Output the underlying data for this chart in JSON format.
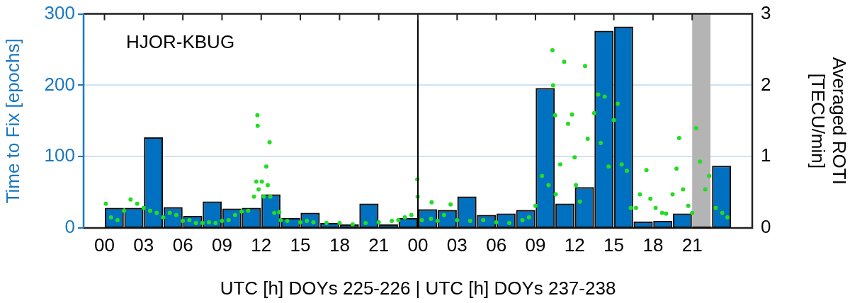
{
  "chart_data": {
    "type": "bar",
    "xlabel": "UTC [h] DOYs 225-226 | UTC [h] DOYs 237-238",
    "ylabel": "Time to Fix [epochs]",
    "y2label": "Averaged ROTI [TECU/min]",
    "annotations": [
      "HJOR-KBUG"
    ],
    "xlim": [
      0,
      48
    ],
    "xticks": [
      {
        "value": 0,
        "label": "00"
      },
      {
        "value": 3,
        "label": "03"
      },
      {
        "value": 6,
        "label": "06"
      },
      {
        "value": 9,
        "label": "09"
      },
      {
        "value": 12,
        "label": "12"
      },
      {
        "value": 15,
        "label": "15"
      },
      {
        "value": 18,
        "label": "18"
      },
      {
        "value": 21,
        "label": "21"
      },
      {
        "value": 24,
        "label": "00"
      },
      {
        "value": 27,
        "label": "03"
      },
      {
        "value": 30,
        "label": "06"
      },
      {
        "value": 33,
        "label": "09"
      },
      {
        "value": 36,
        "label": "12"
      },
      {
        "value": 39,
        "label": "15"
      },
      {
        "value": 42,
        "label": "18"
      },
      {
        "value": 45,
        "label": "21"
      }
    ],
    "ylim": [
      0,
      300
    ],
    "yticks": [
      0,
      100,
      200,
      300
    ],
    "y2lim": [
      0,
      3
    ],
    "y2ticks": [
      0,
      1,
      2,
      3
    ],
    "grid": "y",
    "legend": false,
    "ref_lines": [
      {
        "axis": "x",
        "value": 24,
        "color": "#000000"
      }
    ],
    "bands": [
      {
        "axis": "x",
        "from": 45,
        "to": 46.4,
        "color": "#b4b4b4"
      }
    ],
    "series": [
      {
        "type": "bar",
        "color": "#0070c0",
        "x": [
          0.75,
          2.25,
          3.75,
          5.25,
          6.75,
          8.25,
          9.75,
          11.25,
          12.75,
          14.25,
          15.75,
          17.25,
          18.75,
          20.25,
          21.75,
          23.25,
          24.75,
          26.25,
          27.75,
          29.25,
          30.75,
          32.25,
          33.75,
          35.25,
          36.75,
          38.25,
          39.75,
          41.25,
          42.75,
          44.25,
          45.75,
          47.25
        ],
        "values": [
          26,
          26,
          125,
          27,
          15,
          35,
          25,
          26,
          45,
          12,
          19,
          5,
          3,
          32,
          3,
          12,
          24,
          23,
          42,
          16,
          18,
          23,
          194,
          32,
          55,
          274,
          280,
          7,
          8,
          18,
          null,
          85
        ]
      },
      {
        "type": "scatter",
        "axis": "y2",
        "color": "#22dd22",
        "marker": "circle",
        "x": [
          0.1,
          0.5,
          1.0,
          1.5,
          2.0,
          2.5,
          3.0,
          3.5,
          4.0,
          4.5,
          5.0,
          5.5,
          6.0,
          6.5,
          7.0,
          7.5,
          8.0,
          8.5,
          9.0,
          9.5,
          10.0,
          10.5,
          11.0,
          11.45,
          11.63,
          11.71,
          11.73,
          11.8,
          12.05,
          12.2,
          12.39,
          12.5,
          12.64,
          12.7,
          13.0,
          13.38,
          13.5,
          14.0,
          15.0,
          15.5,
          16.0,
          17.0,
          18.0,
          19.0,
          20.0,
          21.0,
          22.0,
          22.5,
          23.0,
          23.5,
          23.95,
          23.98,
          24.3,
          25.0,
          25.05,
          25.5,
          26.0,
          26.5,
          27.0,
          28.0,
          29.0,
          30.0,
          31.0,
          32.0,
          32.5,
          33.0,
          33.5,
          34.0,
          34.3,
          34.35,
          34.5,
          34.55,
          34.9,
          35.2,
          35.5,
          35.8,
          36.0,
          36.1,
          36.4,
          36.8,
          37.0,
          37.5,
          37.8,
          38.0,
          38.3,
          38.6,
          39.0,
          39.3,
          39.6,
          40.0,
          40.3,
          40.7,
          41.0,
          41.5,
          41.8,
          42.2,
          42.7,
          43.0,
          43.5,
          43.8,
          44.0,
          44.3,
          44.7,
          45.0,
          45.3,
          45.6,
          46.0,
          46.3,
          46.8,
          47.3,
          47.7
        ],
        "values": [
          0.34,
          0.15,
          0.11,
          0.24,
          0.4,
          0.34,
          0.28,
          0.24,
          0.21,
          0.15,
          0.21,
          0.18,
          0.1,
          0.11,
          0.07,
          0.07,
          0.08,
          0.07,
          0.1,
          0.11,
          0.18,
          0.23,
          0.24,
          0.44,
          0.65,
          1.58,
          1.43,
          0.54,
          0.65,
          0.44,
          0.86,
          0.6,
          1.2,
          0.44,
          0.21,
          0.22,
          0.11,
          0.1,
          0.08,
          0.1,
          0.08,
          0.07,
          0.07,
          0.05,
          0.07,
          0.08,
          0.1,
          0.11,
          0.15,
          0.18,
          0.68,
          0.44,
          0.11,
          0.13,
          0.36,
          0.1,
          0.18,
          0.33,
          0.11,
          0.1,
          0.11,
          0.08,
          0.07,
          0.11,
          0.15,
          0.31,
          0.73,
          0.6,
          2.49,
          2.0,
          1.58,
          0.47,
          0.89,
          2.33,
          1.46,
          1.59,
          0.99,
          0.6,
          0.37,
          2.27,
          1.25,
          1.61,
          1.87,
          1.19,
          1.84,
          0.86,
          1.51,
          1.74,
          0.89,
          0.8,
          0.28,
          0.28,
          0.47,
          0.81,
          0.41,
          0.28,
          0.21,
          0.2,
          0.47,
          0.83,
          1.26,
          0.54,
          0.31,
          0.21,
          1.4,
          0.93,
          0.54,
          0.73,
          0.28,
          0.21,
          0.15
        ]
      }
    ]
  }
}
